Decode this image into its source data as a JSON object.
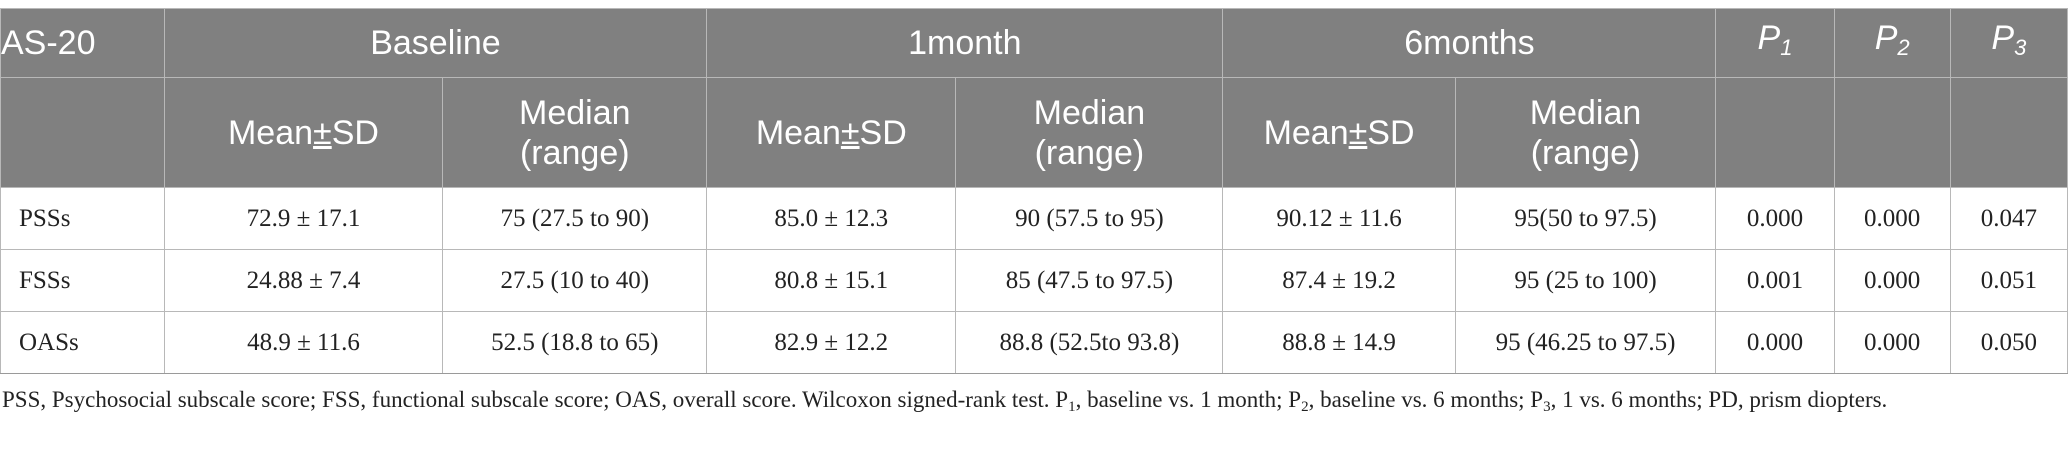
{
  "table": {
    "header": {
      "row1": {
        "col0": "AS-20",
        "groups": [
          "Baseline",
          "1month",
          "6months"
        ],
        "p_letter": "P",
        "p_subs": [
          "1",
          "2",
          "3"
        ]
      },
      "row2": {
        "mean_pre": "Mean",
        "pm": "±",
        "mean_post": "SD",
        "median_line1": "Median",
        "median_line2": "(range)"
      }
    },
    "rows": [
      {
        "label": "PSSs",
        "cells": [
          "72.9 ± 17.1",
          "75 (27.5 to 90)",
          "85.0 ± 12.3",
          "90 (57.5 to 95)",
          "90.12 ± 11.6",
          "95(50 to 97.5)",
          "0.000",
          "0.000",
          "0.047"
        ]
      },
      {
        "label": "FSSs",
        "cells": [
          "24.88 ± 7.4",
          "27.5 (10 to 40)",
          "80.8 ± 15.1",
          "85 (47.5 to 97.5)",
          "87.4 ± 19.2",
          "95 (25 to 100)",
          "0.001",
          "0.000",
          "0.051"
        ]
      },
      {
        "label": "OASs",
        "cells": [
          "48.9 ± 11.6",
          "52.5 (18.8 to 65)",
          "82.9 ± 12.2",
          "88.8 (52.5to 93.8)",
          "88.8 ± 14.9",
          "95 (46.25 to 97.5)",
          "0.000",
          "0.000",
          "0.050"
        ]
      }
    ]
  },
  "footnote": {
    "part1": "PSS, Psychosocial subscale score; FSS, functional subscale score; OAS, overall score. Wilcoxon signed-rank test. P",
    "sub1": "1",
    "part2": ", baseline vs. 1 month; P",
    "sub2": "2",
    "part3": ", baseline vs. 6 months; P",
    "sub3": "3",
    "part4": ", 1 vs. 6 months; PD, prism diopters."
  }
}
